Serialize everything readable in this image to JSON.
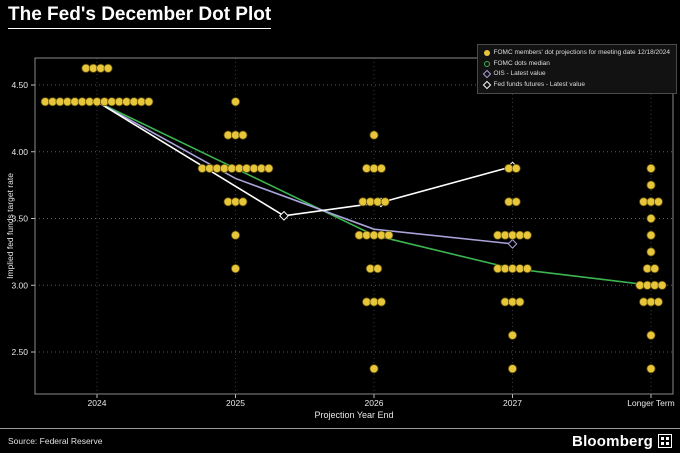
{
  "title": "The Fed's December Dot Plot",
  "footer": {
    "source": "Source: Federal Reserve",
    "brand": "Bloomberg"
  },
  "legend": {
    "items": [
      {
        "marker": "dot",
        "color": "#e7c63c",
        "label": "FOMC members' dot projections for meeting date 12/18/2024"
      },
      {
        "marker": "open-circle",
        "color": "#3cb450",
        "label": "FOMC dots median"
      },
      {
        "marker": "diamond",
        "color": "#a9a4d9",
        "label": "OIS - Latest value"
      },
      {
        "marker": "diamond",
        "color": "#ffffff",
        "label": "Fed funds futures - Latest value"
      }
    ]
  },
  "chart_data": {
    "type": "scatter",
    "title": "The Fed's December Dot Plot",
    "xlabel": "Projection Year End",
    "ylabel": "Implied fed funds target rate",
    "categories": [
      "2024",
      "2025",
      "2026",
      "2027",
      "Longer Term"
    ],
    "y_ticks": [
      "4.50",
      "4.00",
      "3.50",
      "3.00",
      "2.50"
    ],
    "ylim": [
      2.2,
      4.7
    ],
    "grid": true,
    "legend_position": "top-right",
    "dot_color": "#e7c63c",
    "dots": [
      {
        "category": "2024",
        "rate": 4.625,
        "count": 4
      },
      {
        "category": "2024",
        "rate": 4.375,
        "count": 15
      },
      {
        "category": "2025",
        "rate": 4.375,
        "count": 1
      },
      {
        "category": "2025",
        "rate": 4.125,
        "count": 3
      },
      {
        "category": "2025",
        "rate": 3.875,
        "count": 10
      },
      {
        "category": "2025",
        "rate": 3.625,
        "count": 3
      },
      {
        "category": "2025",
        "rate": 3.375,
        "count": 1
      },
      {
        "category": "2025",
        "rate": 3.125,
        "count": 1
      },
      {
        "category": "2026",
        "rate": 4.125,
        "count": 1
      },
      {
        "category": "2026",
        "rate": 3.875,
        "count": 3
      },
      {
        "category": "2026",
        "rate": 3.625,
        "count": 4
      },
      {
        "category": "2026",
        "rate": 3.375,
        "count": 5
      },
      {
        "category": "2026",
        "rate": 3.125,
        "count": 2
      },
      {
        "category": "2026",
        "rate": 2.875,
        "count": 3
      },
      {
        "category": "2026",
        "rate": 2.375,
        "count": 1
      },
      {
        "category": "2027",
        "rate": 3.875,
        "count": 2
      },
      {
        "category": "2027",
        "rate": 3.625,
        "count": 2
      },
      {
        "category": "2027",
        "rate": 3.375,
        "count": 5
      },
      {
        "category": "2027",
        "rate": 3.125,
        "count": 5
      },
      {
        "category": "2027",
        "rate": 2.875,
        "count": 3
      },
      {
        "category": "2027",
        "rate": 2.625,
        "count": 1
      },
      {
        "category": "2027",
        "rate": 2.375,
        "count": 1
      },
      {
        "category": "Longer Term",
        "rate": 3.875,
        "count": 1
      },
      {
        "category": "Longer Term",
        "rate": 3.75,
        "count": 1
      },
      {
        "category": "Longer Term",
        "rate": 3.625,
        "count": 3
      },
      {
        "category": "Longer Term",
        "rate": 3.5,
        "count": 1
      },
      {
        "category": "Longer Term",
        "rate": 3.375,
        "count": 1
      },
      {
        "category": "Longer Term",
        "rate": 3.25,
        "count": 1
      },
      {
        "category": "Longer Term",
        "rate": 3.125,
        "count": 2
      },
      {
        "category": "Longer Term",
        "rate": 3.0,
        "count": 4
      },
      {
        "category": "Longer Term",
        "rate": 2.875,
        "count": 3
      },
      {
        "category": "Longer Term",
        "rate": 2.625,
        "count": 1
      },
      {
        "category": "Longer Term",
        "rate": 2.375,
        "count": 1
      }
    ],
    "lines": [
      {
        "name": "FOMC dots median",
        "color": "#3cb450",
        "marker": "none",
        "points": [
          {
            "x": 0,
            "rate": 4.375
          },
          {
            "x": 1,
            "rate": 3.875
          },
          {
            "x": 2,
            "rate": 3.375
          },
          {
            "x": 3,
            "rate": 3.125
          },
          {
            "x": 4,
            "rate": 3.0
          }
        ]
      },
      {
        "name": "OIS - Latest value",
        "color": "#a9a4d9",
        "marker": "diamond-end",
        "points": [
          {
            "x": 0,
            "rate": 4.375
          },
          {
            "x": 1,
            "rate": 3.8
          },
          {
            "x": 2,
            "rate": 3.42
          },
          {
            "x": 3,
            "rate": 3.31
          }
        ]
      },
      {
        "name": "Fed funds futures - Latest value",
        "color": "#ffffff",
        "marker": "diamond",
        "points": [
          {
            "x": 0,
            "rate": 4.375
          },
          {
            "x": 1.35,
            "rate": 3.52
          },
          {
            "x": 2.05,
            "rate": 3.62
          },
          {
            "x": 3,
            "rate": 3.89
          }
        ]
      }
    ]
  }
}
